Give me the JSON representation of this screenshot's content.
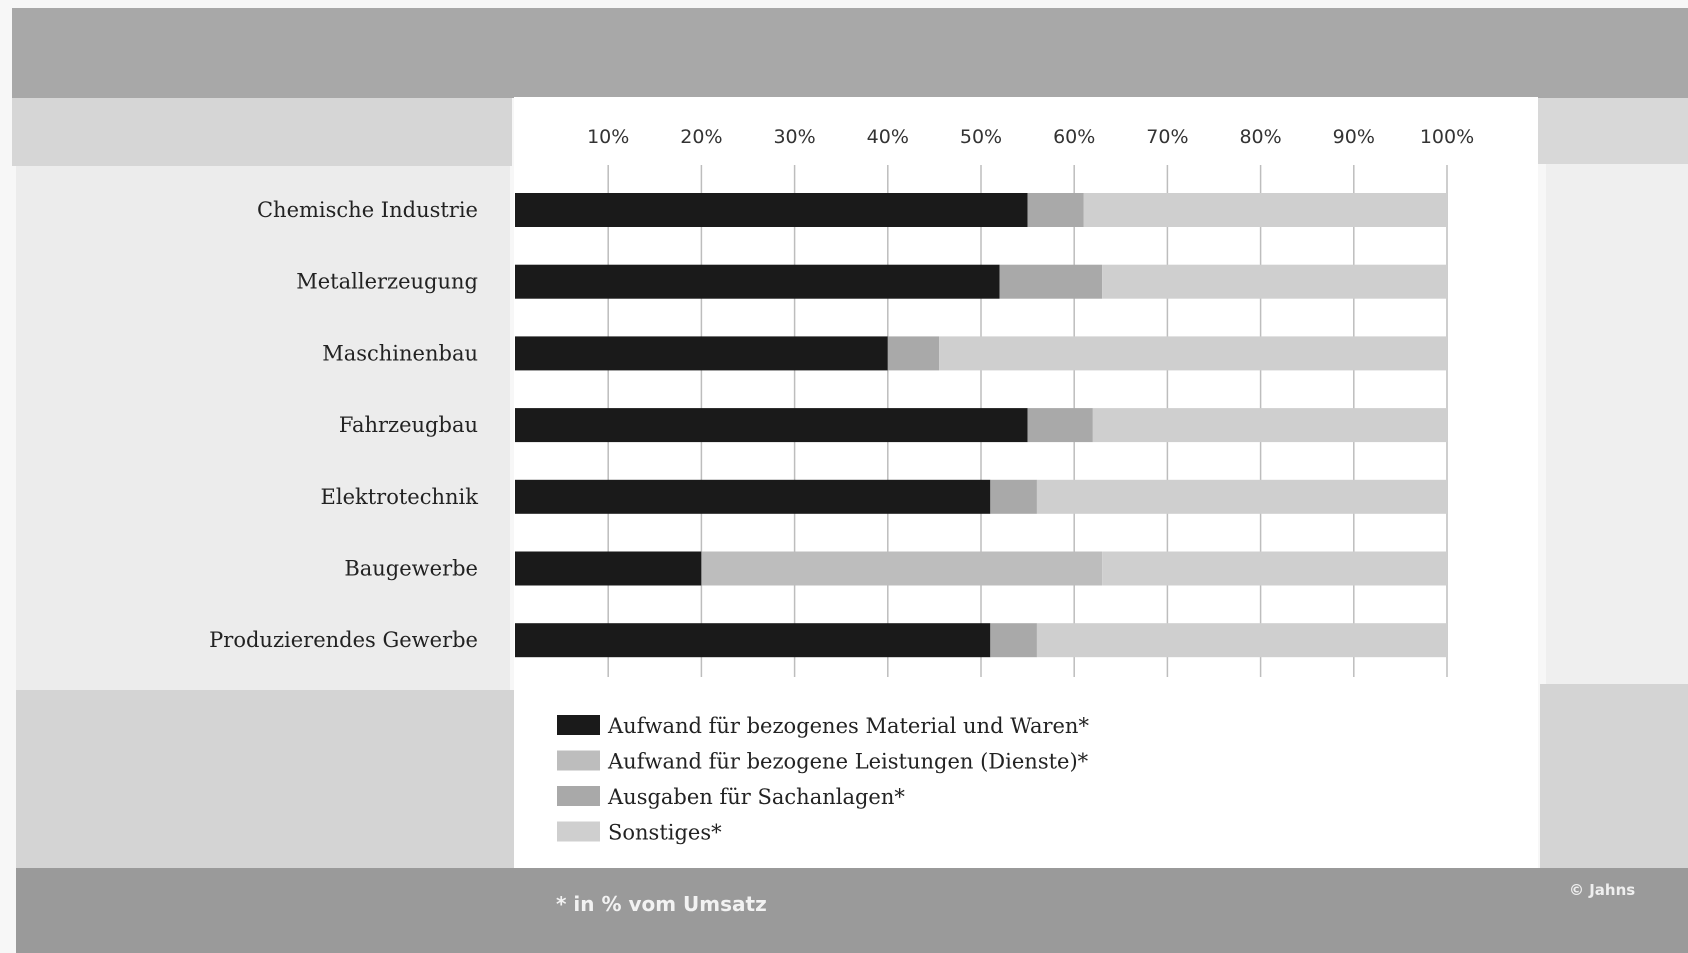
{
  "chart_data": {
    "type": "bar",
    "orientation": "horizontal",
    "stacked": true,
    "xlim": [
      0,
      100
    ],
    "grid": true,
    "legend_position": "bottom",
    "tick_labels": [
      "10%",
      "20%",
      "30%",
      "40%",
      "50%",
      "60%",
      "70%",
      "80%",
      "90%",
      "100%"
    ],
    "categories": [
      "Chemische Industrie",
      "Metallerzeugung",
      "Maschinenbau",
      "Fahrzeugbau",
      "Elektrotechnik",
      "Baugewerbe",
      "Produzierendes Gewerbe"
    ],
    "series": [
      {
        "name": "Aufwand für bezogenes Material und Waren*",
        "color": "#1a1a1a",
        "values": [
          55,
          52,
          40,
          55,
          51,
          20,
          51
        ]
      },
      {
        "name": "Aufwand für bezogene Leistungen (Dienste)*",
        "color": "#bdbdbd",
        "values": [
          0,
          0,
          0,
          0,
          0,
          43,
          0
        ]
      },
      {
        "name": "Ausgaben für Sachanlagen*",
        "color": "#a9a9a9",
        "values": [
          6,
          11,
          5.5,
          7,
          5,
          0,
          5
        ]
      },
      {
        "name": "Sonstiges*",
        "color": "#cfcfcf",
        "values": [
          39,
          37,
          54.5,
          38,
          44,
          37,
          44
        ]
      }
    ]
  },
  "footnote": "* in % vom Umsatz",
  "credit": "© Jahns"
}
